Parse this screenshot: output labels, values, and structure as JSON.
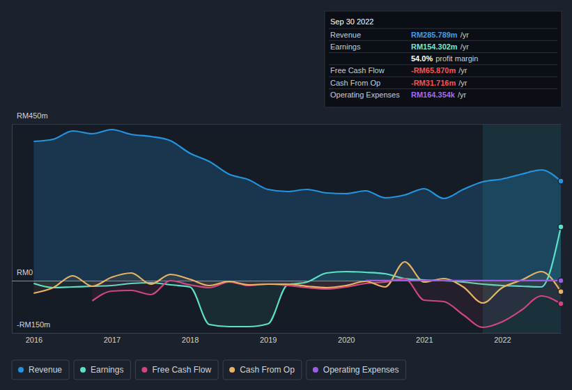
{
  "chart_data": {
    "type": "line",
    "x": [
      2016,
      2016.25,
      2016.5,
      2016.75,
      2017,
      2017.25,
      2017.5,
      2017.75,
      2018,
      2018.25,
      2018.5,
      2018.75,
      2019,
      2019.25,
      2019.5,
      2019.75,
      2020,
      2020.25,
      2020.5,
      2020.75,
      2021,
      2021.25,
      2021.5,
      2021.75,
      2022,
      2022.25,
      2022.5,
      2022.75
    ],
    "xlim": [
      2015.72,
      2022.75
    ],
    "xticks": [
      2016,
      2017,
      2018,
      2019,
      2020,
      2021,
      2022
    ],
    "ylim": [
      -150,
      450
    ],
    "yticks": [
      {
        "value": -150,
        "label": "-RM150m"
      },
      {
        "value": 0,
        "label": "RM0"
      },
      {
        "value": 450,
        "label": "RM450m"
      }
    ],
    "grid": true,
    "legend": "bottom",
    "series": [
      {
        "name": "Revenue",
        "color": "#2394df",
        "values": [
          400,
          406,
          430,
          422,
          434,
          420,
          414,
          402,
          366,
          342,
          306,
          290,
          262,
          256,
          262,
          252,
          250,
          258,
          238,
          246,
          264,
          236,
          262,
          284,
          292,
          306,
          318,
          285.789
        ]
      },
      {
        "name": "Earnings",
        "color": "#5ce1c9",
        "values": [
          -8,
          -20,
          -18,
          -16,
          -14,
          -8,
          -6,
          -12,
          -18,
          -126,
          -132,
          -132,
          -124,
          -12,
          -4,
          22,
          26,
          24,
          20,
          6,
          2,
          0,
          -4,
          -10,
          -14,
          -16,
          -18,
          154.302
        ]
      },
      {
        "name": "Free Cash Flow",
        "color": "#d1467e",
        "values": [
          null,
          null,
          null,
          -58,
          -30,
          -28,
          -40,
          0,
          -12,
          -20,
          -4,
          -14,
          -10,
          -14,
          -20,
          -24,
          -18,
          -8,
          -4,
          6,
          -56,
          -60,
          -98,
          -134,
          -118,
          -84,
          -44,
          -65.87
        ]
      },
      {
        "name": "Cash From Op",
        "color": "#e8b464",
        "values": [
          -36,
          -20,
          14,
          -16,
          10,
          22,
          -10,
          18,
          4,
          -14,
          -2,
          -12,
          -10,
          -10,
          -16,
          -20,
          -14,
          -2,
          -18,
          54,
          -4,
          6,
          -18,
          -64,
          -20,
          2,
          26,
          -31.716
        ]
      },
      {
        "name": "Operating Expenses",
        "color": "#9b5de5",
        "values": [
          null,
          null,
          null,
          null,
          null,
          null,
          null,
          null,
          null,
          null,
          null,
          null,
          null,
          null,
          null,
          null,
          null,
          0.15,
          0.16,
          0.16,
          0.17,
          0.17,
          0.16,
          0.16,
          0.17,
          0.16,
          0.16,
          0.164354
        ]
      }
    ],
    "tooltip": {
      "date": "Sep 30 2022",
      "rows": [
        {
          "label": "Revenue",
          "value": "RM285.789m",
          "unit": "/yr",
          "color": "#3d9ee6"
        },
        {
          "label": "Earnings",
          "value": "RM154.302m",
          "unit": "/yr",
          "color": "#6fe7cf"
        },
        {
          "value": "54.0%",
          "unit": "profit margin",
          "color": "#ffffff"
        },
        {
          "label": "Free Cash Flow",
          "value": "-RM65.870m",
          "unit": "/yr",
          "color": "#ff4d4d"
        },
        {
          "label": "Cash From Op",
          "value": "-RM31.716m",
          "unit": "/yr",
          "color": "#ff4d4d"
        },
        {
          "label": "Operating Expenses",
          "value": "RM164.354k",
          "unit": "/yr",
          "color": "#a469f0"
        }
      ]
    }
  }
}
